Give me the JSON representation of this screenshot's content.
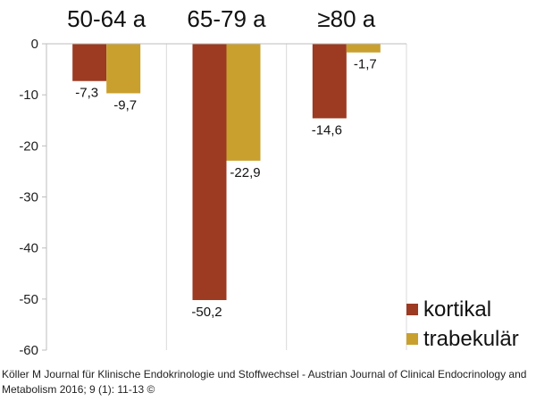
{
  "chart_data": {
    "type": "bar",
    "title": "",
    "xlabel": "",
    "ylabel": "",
    "categories": [
      "50-64 a",
      "65-79 a",
      "≥80 a"
    ],
    "series": [
      {
        "name": "kortikal",
        "color": "#9c3a22",
        "values": [
          -7.3,
          -50.2,
          -14.6
        ],
        "labels": [
          "-7,3",
          "-50,2",
          "-14,6"
        ]
      },
      {
        "name": "trabekulär",
        "color": "#c9a02e",
        "values": [
          -9.7,
          -22.9,
          -1.7
        ],
        "labels": [
          "-9,7",
          "-22,9",
          "-1,7"
        ]
      }
    ],
    "ylim": [
      -60,
      0
    ],
    "yticks": [
      0,
      -10,
      -20,
      -30,
      -40,
      -50,
      -60
    ],
    "ytick_labels": [
      "0",
      "-10",
      "-20",
      "-30",
      "-40",
      "-50",
      "-60"
    ],
    "grid": "vertical",
    "legend": "bottom-right"
  },
  "citation": "Köller M Journal für Klinische Endokrinologie und Stoffwechsel - Austrian Journal of Clinical Endocrinology and Metabolism 2016; 9 (1): 11-13 ©"
}
